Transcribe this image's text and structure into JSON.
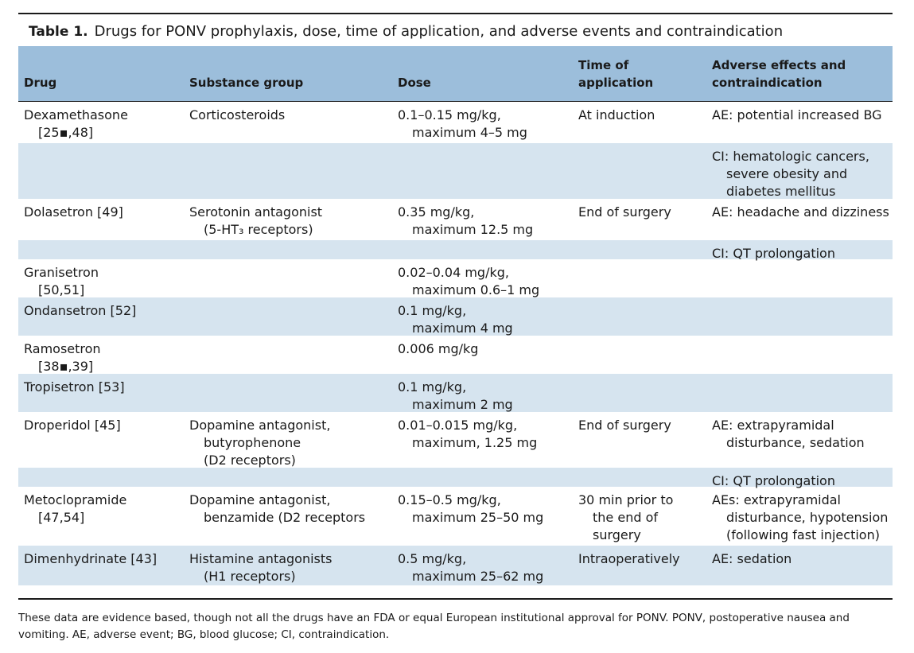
{
  "caption": {
    "label": "Table 1.",
    "text": "Drugs for PONV prophylaxis, dose, time of application, and adverse events and contraindication"
  },
  "header": {
    "drug": "Drug",
    "group": "Substance group",
    "dose": "Dose",
    "time_l1": "Time of",
    "time_l2": "application",
    "ae_l1": "Adverse effects and",
    "ae_l2": "contraindication"
  },
  "rows": [
    {
      "drug": [
        "Dexamethasone",
        "[25▪,48]"
      ],
      "group": [
        "Corticosteroids"
      ],
      "dose": [
        "0.1–0.15 mg/kg,",
        "maximum 4–5 mg"
      ],
      "time": [
        "At induction"
      ],
      "ae": [
        "AE: potential increased BG"
      ]
    },
    {
      "drug": [],
      "group": [],
      "dose": [],
      "time": [],
      "ae": [
        "CI: hematologic cancers,",
        "severe obesity and",
        "diabetes mellitus"
      ]
    },
    {
      "drug": [
        "Dolasetron [49]"
      ],
      "group": [
        "Serotonin antagonist",
        "(5-HT₃ receptors)"
      ],
      "dose": [
        "0.35 mg/kg,",
        "maximum 12.5 mg"
      ],
      "time": [
        "End of surgery"
      ],
      "ae": [
        "AE: headache and dizziness"
      ]
    },
    {
      "drug": [],
      "group": [],
      "dose": [],
      "time": [],
      "ae": [
        "CI: QT prolongation"
      ]
    },
    {
      "drug": [
        "Granisetron",
        "[50,51]"
      ],
      "group": [],
      "dose": [
        "0.02–0.04 mg/kg,",
        "maximum 0.6–1 mg"
      ],
      "time": [],
      "ae": []
    },
    {
      "drug": [
        "Ondansetron [52]"
      ],
      "group": [],
      "dose": [
        "0.1 mg/kg,",
        "maximum 4 mg"
      ],
      "time": [],
      "ae": []
    },
    {
      "drug": [
        "Ramosetron",
        "[38▪,39]"
      ],
      "group": [],
      "dose": [
        "0.006 mg/kg"
      ],
      "time": [],
      "ae": []
    },
    {
      "drug": [
        "Tropisetron [53]"
      ],
      "group": [],
      "dose": [
        "0.1 mg/kg,",
        "maximum 2 mg"
      ],
      "time": [],
      "ae": []
    },
    {
      "drug": [
        "Droperidol [45]"
      ],
      "group": [
        "Dopamine antagonist,",
        "butyrophenone",
        "(D2 receptors)"
      ],
      "dose": [
        "0.01–0.015 mg/kg,",
        "maximum, 1.25 mg"
      ],
      "time": [
        "End of surgery"
      ],
      "ae": [
        "AE: extrapyramidal",
        "disturbance, sedation"
      ]
    },
    {
      "drug": [],
      "group": [],
      "dose": [],
      "time": [],
      "ae": [
        "CI: QT prolongation"
      ]
    },
    {
      "drug": [
        "Metoclopramide",
        "[47,54]"
      ],
      "group": [
        "Dopamine antagonist,",
        "benzamide (D2 receptors"
      ],
      "dose": [
        "0.15–0.5 mg/kg,",
        "maximum 25–50 mg"
      ],
      "time": [
        "30 min prior to",
        "the end of",
        "surgery"
      ],
      "ae": [
        "AEs: extrapyramidal",
        "disturbance, hypotension",
        "(following fast injection)"
      ]
    },
    {
      "drug": [
        "Dimenhydrinate [43]"
      ],
      "group": [
        "Histamine antagonists",
        "(H1 receptors)"
      ],
      "dose": [
        "0.5 mg/kg,",
        "maximum 25–62 mg"
      ],
      "time": [
        "Intraoperatively"
      ],
      "ae": [
        "AE: sedation"
      ]
    }
  ],
  "footnote": "These data are evidence based, though not all the drugs have an FDA or equal European institutional approval for PONV. PONV, postoperative nausea and vomiting. AE, adverse event; BG, blood glucose; CI, contraindication."
}
